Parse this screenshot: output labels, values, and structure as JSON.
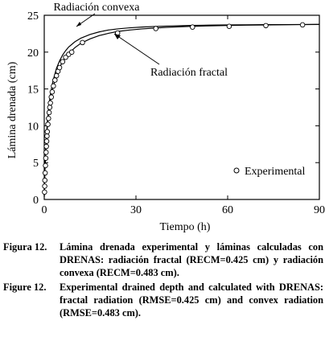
{
  "chart_data": {
    "type": "line",
    "xlabel": "Tiempo (h)",
    "ylabel": "Lámina drenada (cm)",
    "xlim": [
      0,
      90
    ],
    "ylim": [
      0,
      25
    ],
    "xticks": [
      "0",
      "30",
      "60",
      "90"
    ],
    "yticks": [
      "0",
      "5",
      "10",
      "15",
      "20",
      "25"
    ],
    "grid": false,
    "series": [
      {
        "name": "Radiación convexa",
        "style": "solid-line",
        "x": [
          0,
          0.2,
          0.4,
          0.6,
          0.8,
          1,
          1.5,
          2,
          2.5,
          3,
          4,
          5,
          6,
          7,
          8,
          10,
          12,
          15,
          18,
          21,
          24,
          28,
          32,
          36,
          42,
          48,
          54,
          60,
          66,
          72,
          78,
          84,
          90
        ],
        "y": [
          0.4,
          3.9,
          6.2,
          7.9,
          9.3,
          10.5,
          12.7,
          14.2,
          15.4,
          16.3,
          17.8,
          18.8,
          19.6,
          20.2,
          20.7,
          21.4,
          21.9,
          22.4,
          22.75,
          23.0,
          23.15,
          23.3,
          23.4,
          23.48,
          23.56,
          23.62,
          23.66,
          23.69,
          23.71,
          23.73,
          23.74,
          23.75,
          23.76
        ]
      },
      {
        "name": "Radiación fractal",
        "style": "solid-line",
        "x": [
          0,
          0.2,
          0.4,
          0.6,
          0.8,
          1,
          1.5,
          2,
          2.5,
          3,
          4,
          5,
          6,
          7,
          8,
          10,
          12,
          15,
          18,
          21,
          24,
          28,
          32,
          36,
          42,
          48,
          54,
          60,
          66,
          72,
          78,
          84,
          90
        ],
        "y": [
          0.4,
          3.5,
          5.7,
          7.3,
          8.6,
          9.7,
          11.8,
          13.3,
          14.5,
          15.4,
          16.9,
          17.9,
          18.7,
          19.3,
          19.8,
          20.6,
          21.2,
          21.8,
          22.25,
          22.55,
          22.8,
          23.0,
          23.15,
          23.27,
          23.4,
          23.5,
          23.57,
          23.62,
          23.66,
          23.69,
          23.72,
          23.74,
          23.76
        ]
      },
      {
        "name": "Experimental",
        "style": "open-circle",
        "x": [
          0.1,
          0.15,
          0.2,
          0.3,
          0.4,
          0.5,
          0.6,
          0.7,
          0.8,
          0.9,
          1.0,
          1.2,
          1.4,
          1.6,
          1.8,
          2.0,
          2.3,
          2.6,
          3.0,
          3.5,
          4.0,
          4.5,
          5.0,
          6.0,
          7.0,
          8.0,
          9.0,
          12.5,
          24,
          36.5,
          48.5,
          60.5,
          72.5,
          84.5
        ],
        "y": [
          1.0,
          1.8,
          2.6,
          3.6,
          4.6,
          5.6,
          6.4,
          7.2,
          7.9,
          8.6,
          9.2,
          10.2,
          11.0,
          11.8,
          12.5,
          13.1,
          13.9,
          14.6,
          15.4,
          16.2,
          16.8,
          17.4,
          17.9,
          18.7,
          19.3,
          19.7,
          20.0,
          21.3,
          22.6,
          23.2,
          23.4,
          23.5,
          23.6,
          23.7
        ]
      }
    ],
    "annotations": [
      "Radiación convexa",
      "Radiación fractal"
    ],
    "legend": {
      "position": "bottom-right",
      "entries": [
        "Experimental"
      ]
    }
  },
  "caption": [
    {
      "label": "Figura 12.",
      "text": "Lámina drenada experimental y láminas calculadas con DRENAS: radiación fractal (RECM=0.425 cm) y radiación convexa (RECM=0.483 cm)."
    },
    {
      "label": "Figure 12.",
      "text": "Experimental drained depth and calculated with DRENAS: fractal radiation (RMSE=0.425 cm) and convex radiation (RMSE=0.483 cm)."
    }
  ]
}
